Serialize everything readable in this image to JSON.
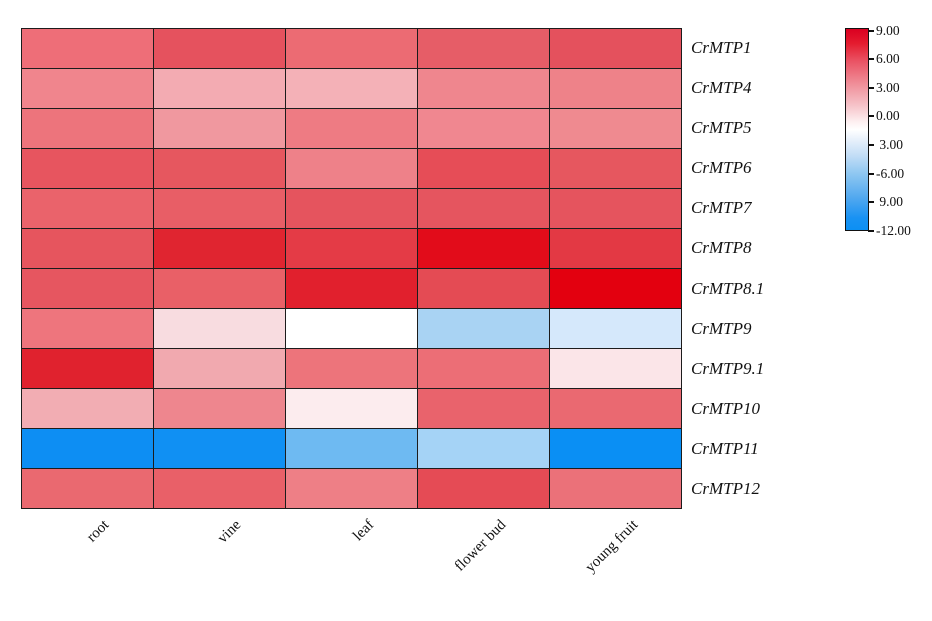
{
  "figure": {
    "background_color": "#ffffff",
    "grid_border_color": "#1c1c1c"
  },
  "chart_data": {
    "type": "heatmap",
    "title": "",
    "xlabel": "",
    "ylabel": "",
    "rows": [
      "CrMTP1",
      "CrMTP4",
      "CrMTP5",
      "CrMTP6",
      "CrMTP7",
      "CrMTP8",
      "CrMTP8.1",
      "CrMTP9",
      "CrMTP9.1",
      "CrMTP10",
      "CrMTP11",
      "CrMTP12"
    ],
    "columns": [
      "root",
      "vine",
      "leaf",
      "flower bud",
      "young fruit"
    ],
    "cell_colors": [
      [
        "#ee6e78",
        "#e5525e",
        "#ec6b73",
        "#e65d67",
        "#e4515d"
      ],
      [
        "#f0858d",
        "#f3abb2",
        "#f4b1b7",
        "#ef868e",
        "#ee8289"
      ],
      [
        "#ed747c",
        "#f0989f",
        "#ee7b83",
        "#f08790",
        "#ef8a90"
      ],
      [
        "#e7555f",
        "#e6575f",
        "#ee8189",
        "#e64d57",
        "#e6575f"
      ],
      [
        "#ea636b",
        "#e85e66",
        "#e5545e",
        "#e5555f",
        "#e5545e"
      ],
      [
        "#e6555e",
        "#e02530",
        "#e43b46",
        "#e20c1a",
        "#e33944"
      ],
      [
        "#e65660",
        "#e96067",
        "#e1202d",
        "#e44b54",
        "#e3000f"
      ],
      [
        "#ee757d",
        "#f8dce0",
        "#ffffff",
        "#a9d3f3",
        "#d5e8fb"
      ],
      [
        "#e0222e",
        "#f1a9af",
        "#ed747b",
        "#ec6e76",
        "#fbe5e8"
      ],
      [
        "#f2adb3",
        "#ee868e",
        "#fcecee",
        "#e9636c",
        "#ea6971"
      ],
      [
        "#0d8ef3",
        "#1090f3",
        "#6ebaf2",
        "#a5d3f6",
        "#0a8ff4"
      ],
      [
        "#ea6970",
        "#e96068",
        "#ee7f86",
        "#e54b55",
        "#eb7179"
      ]
    ],
    "estimated_values": [
      [
        5.5,
        6.5,
        5.5,
        6.0,
        6.5
      ],
      [
        4.5,
        3.0,
        2.5,
        4.5,
        4.5
      ],
      [
        5.5,
        3.5,
        5.0,
        4.5,
        4.5
      ],
      [
        6.5,
        6.5,
        4.5,
        6.5,
        6.5
      ],
      [
        6.0,
        6.0,
        6.5,
        6.5,
        6.5
      ],
      [
        6.5,
        7.5,
        7.0,
        8.0,
        7.0
      ],
      [
        6.5,
        6.0,
        7.5,
        7.0,
        9.0
      ],
      [
        5.0,
        0.5,
        -1.5,
        -5.5,
        -3.5
      ],
      [
        7.5,
        3.0,
        5.5,
        5.5,
        0.0
      ],
      [
        3.0,
        4.5,
        -0.5,
        6.0,
        6.0
      ],
      [
        -9.5,
        -9.0,
        -7.0,
        -5.5,
        -9.5
      ],
      [
        6.0,
        6.0,
        5.0,
        7.0,
        5.5
      ]
    ],
    "legend_position": "right",
    "grid": true,
    "colorbar": {
      "tick_labels": [
        "9.00",
        "6.00",
        "3.00",
        "0.00",
        " 3.00",
        "-6.00",
        " 9.00",
        "-12.00"
      ],
      "value_range": [
        9.0,
        -12.0
      ],
      "top_color": "#da0020",
      "middle_color": "#ffffff",
      "bottom_color": "#0c90f3"
    }
  }
}
